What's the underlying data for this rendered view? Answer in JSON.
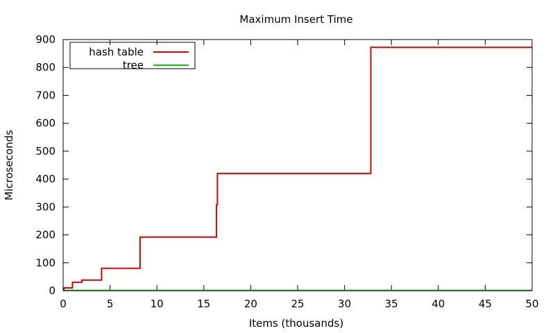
{
  "chart_data": {
    "type": "line",
    "title": "Maximum Insert Time",
    "xlabel": "Items (thousands)",
    "ylabel": "Microseconds",
    "xlim": [
      0,
      50
    ],
    "ylim": [
      0,
      900
    ],
    "x_ticks": [
      0,
      5,
      10,
      15,
      20,
      25,
      30,
      35,
      40,
      45,
      50
    ],
    "y_ticks": [
      0,
      100,
      200,
      300,
      400,
      500,
      600,
      700,
      800,
      900
    ],
    "grid": false,
    "legend_position": "top-left",
    "step": true,
    "series": [
      {
        "name": "hash table",
        "color": "#dd0000",
        "x": [
          0,
          0.1,
          1.0,
          2.0,
          4.1,
          8.2,
          16.35,
          16.45,
          32.8,
          50
        ],
        "y": [
          3,
          10,
          30,
          38,
          80,
          192,
          308,
          420,
          872,
          872
        ]
      },
      {
        "name": "tree",
        "color": "#00cc00",
        "x": [
          0,
          50
        ],
        "y": [
          1,
          1
        ]
      }
    ]
  }
}
